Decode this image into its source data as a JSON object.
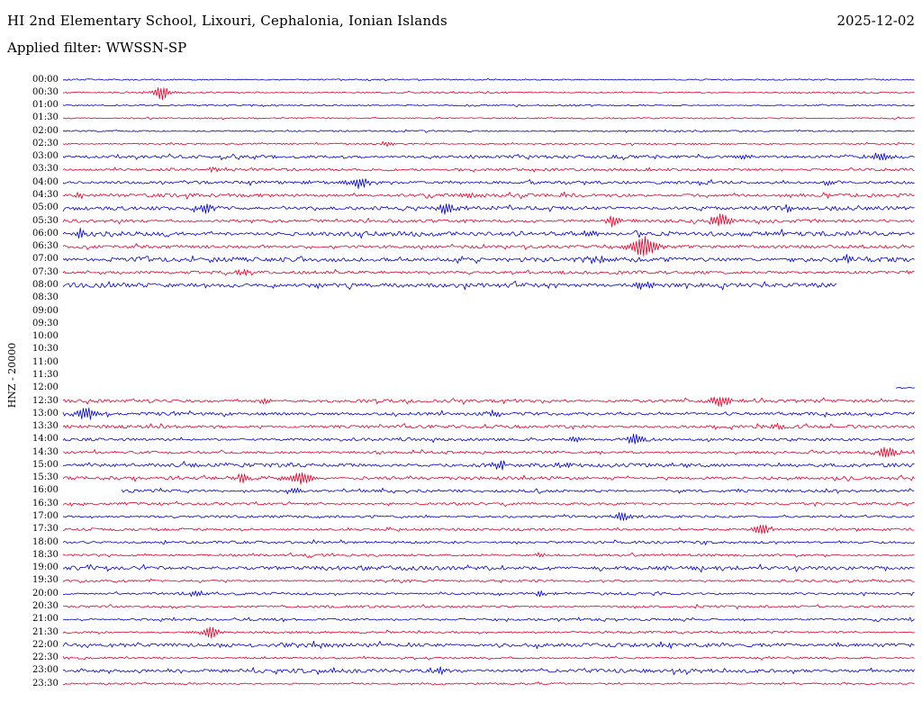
{
  "header": {
    "station_title": "HI 2nd Elementary School, Lixouri, Cephalonia, Ionian Islands",
    "date": "2025-12-02",
    "filter_label": "Applied filter: WWSSN-SP"
  },
  "axis": {
    "channel_label": "HNZ - 20000"
  },
  "colors": {
    "red": "#e0002a",
    "blue": "#0000cd"
  },
  "chart_data": {
    "type": "line",
    "subtype": "helicorder-seismogram",
    "title": "HI 2nd Elementary School, Lixouri, Cephalonia, Ionian Islands",
    "date": "2025-12-02",
    "filter": "WWSSN-SP",
    "channel": "HNZ",
    "scale": "20000",
    "minutes_per_row": 30,
    "rows_total": 48,
    "grid": false,
    "legend": false,
    "note": "Each row is 30 minutes; :00 rows blue, :30 rows red; x is fraction of row width; amp is trace half-amplitude in px; segments are drawn spans (gaps elsewhere mean no data).",
    "rows": [
      {
        "time": "00:00",
        "color": "blue",
        "noise": 0.8,
        "events": [],
        "segments": [
          [
            0,
            1
          ]
        ]
      },
      {
        "time": "00:30",
        "color": "red",
        "noise": 0.8,
        "events": [
          {
            "x": 0.116,
            "amp": 7,
            "w": 5
          }
        ],
        "segments": [
          [
            0,
            1
          ]
        ]
      },
      {
        "time": "01:00",
        "color": "blue",
        "noise": 0.8,
        "events": [],
        "segments": [
          [
            0,
            1
          ]
        ]
      },
      {
        "time": "01:30",
        "color": "red",
        "noise": 0.8,
        "events": [],
        "segments": [
          [
            0,
            1
          ]
        ]
      },
      {
        "time": "02:00",
        "color": "blue",
        "noise": 0.9,
        "events": [],
        "segments": [
          [
            0,
            1
          ]
        ]
      },
      {
        "time": "02:30",
        "color": "red",
        "noise": 0.9,
        "events": [
          {
            "x": 0.38,
            "amp": 2,
            "w": 4
          }
        ],
        "segments": [
          [
            0,
            1
          ]
        ]
      },
      {
        "time": "03:00",
        "color": "blue",
        "noise": 1.8,
        "events": [
          {
            "x": 0.8,
            "amp": 2.5,
            "w": 5
          },
          {
            "x": 0.962,
            "amp": 4,
            "w": 6
          }
        ],
        "segments": [
          [
            0,
            1
          ]
        ]
      },
      {
        "time": "03:30",
        "color": "red",
        "noise": 1.6,
        "events": [
          {
            "x": 0.174,
            "amp": 2.5,
            "w": 4
          }
        ],
        "segments": [
          [
            0,
            1
          ]
        ]
      },
      {
        "time": "04:00",
        "color": "blue",
        "noise": 1.8,
        "events": [
          {
            "x": 0.349,
            "amp": 5,
            "w": 6
          },
          {
            "x": 0.9,
            "amp": 2.5,
            "w": 5
          }
        ],
        "segments": [
          [
            0,
            1
          ]
        ]
      },
      {
        "time": "04:30",
        "color": "red",
        "noise": 2.0,
        "events": [
          {
            "x": 0.02,
            "amp": 2,
            "w": 4
          },
          {
            "x": 0.475,
            "amp": 2,
            "w": 4
          },
          {
            "x": 0.59,
            "amp": 2,
            "w": 4
          }
        ],
        "segments": [
          [
            0,
            1
          ]
        ]
      },
      {
        "time": "05:00",
        "color": "blue",
        "noise": 2.2,
        "events": [
          {
            "x": 0.169,
            "amp": 4.5,
            "w": 5
          },
          {
            "x": 0.449,
            "amp": 5.5,
            "w": 6
          },
          {
            "x": 0.851,
            "amp": 3,
            "w": 5
          }
        ],
        "segments": [
          [
            0,
            1
          ]
        ]
      },
      {
        "time": "05:30",
        "color": "red",
        "noise": 1.8,
        "events": [
          {
            "x": 0.645,
            "amp": 5.5,
            "w": 5
          },
          {
            "x": 0.772,
            "amp": 6.5,
            "w": 6
          }
        ],
        "segments": [
          [
            0,
            1
          ]
        ]
      },
      {
        "time": "06:00",
        "color": "blue",
        "noise": 2.6,
        "events": [
          {
            "x": 0.021,
            "amp": 3,
            "w": 5
          },
          {
            "x": 0.618,
            "amp": 3,
            "w": 6
          }
        ],
        "segments": [
          [
            0,
            1
          ]
        ]
      },
      {
        "time": "06:30",
        "color": "red",
        "noise": 1.8,
        "events": [
          {
            "x": 0.682,
            "amp": 9,
            "w": 9
          }
        ],
        "segments": [
          [
            0,
            1
          ]
        ]
      },
      {
        "time": "07:00",
        "color": "blue",
        "noise": 2.6,
        "events": [
          {
            "x": 0.624,
            "amp": 3,
            "w": 6
          },
          {
            "x": 0.92,
            "amp": 2.5,
            "w": 5
          }
        ],
        "segments": [
          [
            0,
            1
          ]
        ]
      },
      {
        "time": "07:30",
        "color": "red",
        "noise": 1.8,
        "events": [
          {
            "x": 0.211,
            "amp": 2.5,
            "w": 5
          }
        ],
        "segments": [
          [
            0,
            1
          ]
        ]
      },
      {
        "time": "08:00",
        "color": "blue",
        "noise": 2.6,
        "events": [
          {
            "x": 0.682,
            "amp": 3,
            "w": 8
          }
        ],
        "segments": [
          [
            0,
            0.909
          ]
        ]
      },
      {
        "time": "08:30",
        "color": "red",
        "noise": 0,
        "events": [],
        "segments": []
      },
      {
        "time": "09:00",
        "color": "blue",
        "noise": 0,
        "events": [],
        "segments": []
      },
      {
        "time": "09:30",
        "color": "red",
        "noise": 0,
        "events": [],
        "segments": []
      },
      {
        "time": "10:00",
        "color": "blue",
        "noise": 0,
        "events": [],
        "segments": []
      },
      {
        "time": "10:30",
        "color": "red",
        "noise": 0,
        "events": [],
        "segments": []
      },
      {
        "time": "11:00",
        "color": "blue",
        "noise": 0,
        "events": [],
        "segments": []
      },
      {
        "time": "11:30",
        "color": "red",
        "noise": 0,
        "events": [],
        "segments": []
      },
      {
        "time": "12:00",
        "color": "blue",
        "noise": 1.2,
        "events": [],
        "segments": [
          [
            0.978,
            1
          ]
        ]
      },
      {
        "time": "12:30",
        "color": "red",
        "noise": 1.8,
        "events": [
          {
            "x": 0.238,
            "amp": 2.5,
            "w": 5
          },
          {
            "x": 0.772,
            "amp": 5.5,
            "w": 6
          }
        ],
        "segments": [
          [
            0,
            1
          ]
        ]
      },
      {
        "time": "13:00",
        "color": "blue",
        "noise": 1.8,
        "events": [
          {
            "x": 0.026,
            "amp": 5.5,
            "w": 7
          },
          {
            "x": 0.507,
            "amp": 2.5,
            "w": 5
          }
        ],
        "segments": [
          [
            0,
            1
          ]
        ]
      },
      {
        "time": "13:30",
        "color": "red",
        "noise": 1.8,
        "events": [
          {
            "x": 0.84,
            "amp": 2.5,
            "w": 5
          }
        ],
        "segments": [
          [
            0,
            1
          ]
        ]
      },
      {
        "time": "14:00",
        "color": "blue",
        "noise": 1.6,
        "events": [
          {
            "x": 0.603,
            "amp": 2.5,
            "w": 5
          },
          {
            "x": 0.671,
            "amp": 4.5,
            "w": 6
          }
        ],
        "segments": [
          [
            0,
            1
          ]
        ]
      },
      {
        "time": "14:30",
        "color": "red",
        "noise": 1.6,
        "events": [
          {
            "x": 0.967,
            "amp": 6.5,
            "w": 6
          }
        ],
        "segments": [
          [
            0,
            1
          ]
        ]
      },
      {
        "time": "15:00",
        "color": "blue",
        "noise": 2.2,
        "events": [
          {
            "x": 0.513,
            "amp": 3.5,
            "w": 6
          },
          {
            "x": 0.587,
            "amp": 2.5,
            "w": 5
          }
        ],
        "segments": [
          [
            0,
            1
          ]
        ]
      },
      {
        "time": "15:30",
        "color": "red",
        "noise": 1.8,
        "events": [
          {
            "x": 0.211,
            "amp": 4.5,
            "w": 6
          },
          {
            "x": 0.28,
            "amp": 6.5,
            "w": 7
          }
        ],
        "segments": [
          [
            0,
            1
          ]
        ]
      },
      {
        "time": "16:00",
        "color": "blue",
        "noise": 1.6,
        "events": [
          {
            "x": 0.27,
            "amp": 2.5,
            "w": 5
          }
        ],
        "segments": [
          [
            0.069,
            1
          ]
        ]
      },
      {
        "time": "16:30",
        "color": "red",
        "noise": 1.4,
        "events": [],
        "segments": [
          [
            0,
            1
          ]
        ]
      },
      {
        "time": "17:00",
        "color": "blue",
        "noise": 1.4,
        "events": [
          {
            "x": 0.655,
            "amp": 4.5,
            "w": 5
          }
        ],
        "segments": [
          [
            0,
            1
          ]
        ]
      },
      {
        "time": "17:30",
        "color": "red",
        "noise": 1.4,
        "events": [
          {
            "x": 0.819,
            "amp": 5.5,
            "w": 5
          }
        ],
        "segments": [
          [
            0,
            1
          ]
        ]
      },
      {
        "time": "18:00",
        "color": "blue",
        "noise": 1.5,
        "events": [],
        "segments": [
          [
            0,
            1
          ]
        ]
      },
      {
        "time": "18:30",
        "color": "red",
        "noise": 1.4,
        "events": [
          {
            "x": 0.56,
            "amp": 2,
            "w": 4
          }
        ],
        "segments": [
          [
            0,
            1
          ]
        ]
      },
      {
        "time": "19:00",
        "color": "blue",
        "noise": 2.3,
        "events": [],
        "segments": [
          [
            0,
            1
          ]
        ]
      },
      {
        "time": "19:30",
        "color": "red",
        "noise": 1.2,
        "events": [],
        "segments": [
          [
            0,
            1
          ]
        ]
      },
      {
        "time": "20:00",
        "color": "blue",
        "noise": 1.4,
        "events": [
          {
            "x": 0.159,
            "amp": 2.5,
            "w": 4
          },
          {
            "x": 0.56,
            "amp": 2.5,
            "w": 4
          }
        ],
        "segments": [
          [
            0,
            1
          ]
        ]
      },
      {
        "time": "20:30",
        "color": "red",
        "noise": 1.3,
        "events": [],
        "segments": [
          [
            0,
            1
          ]
        ]
      },
      {
        "time": "21:00",
        "color": "blue",
        "noise": 1.3,
        "events": [],
        "segments": [
          [
            0,
            1
          ]
        ]
      },
      {
        "time": "21:30",
        "color": "red",
        "noise": 1.2,
        "events": [
          {
            "x": 0.174,
            "amp": 5.5,
            "w": 5
          }
        ],
        "segments": [
          [
            0,
            1
          ]
        ]
      },
      {
        "time": "22:00",
        "color": "blue",
        "noise": 2.3,
        "events": [],
        "segments": [
          [
            0,
            1
          ]
        ]
      },
      {
        "time": "22:30",
        "color": "red",
        "noise": 1.1,
        "events": [],
        "segments": [
          [
            0,
            1
          ]
        ]
      },
      {
        "time": "23:00",
        "color": "blue",
        "noise": 2.2,
        "events": [
          {
            "x": 0.444,
            "amp": 2.5,
            "w": 4
          }
        ],
        "segments": [
          [
            0,
            1
          ]
        ]
      },
      {
        "time": "23:30",
        "color": "red",
        "noise": 1.0,
        "events": [],
        "segments": [
          [
            0,
            1
          ]
        ]
      }
    ]
  }
}
